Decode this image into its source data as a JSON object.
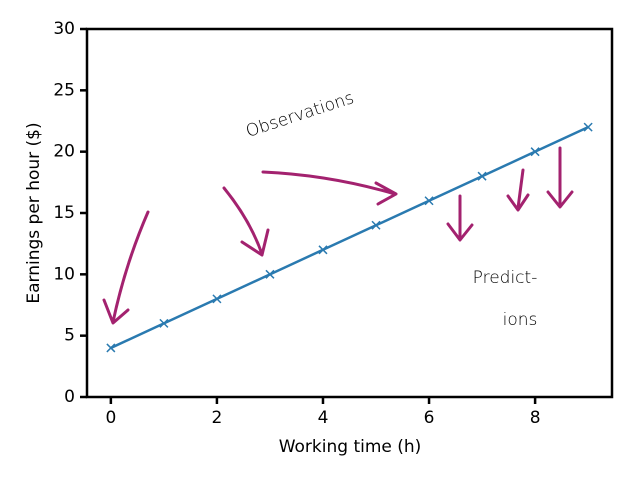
{
  "chart_data": {
    "type": "line",
    "x": [
      0,
      1,
      2,
      3,
      4,
      5,
      6,
      7,
      8,
      9
    ],
    "values": [
      4,
      6,
      8,
      10,
      12,
      14,
      16,
      18,
      20,
      22
    ],
    "color": "#2a7ab0",
    "xlabel": "Working time (h)",
    "ylabel": "Earnings per hour ($)",
    "xlim": [
      -0.45,
      9.45
    ],
    "xticks": [
      0,
      2,
      4,
      6,
      8
    ],
    "ylim": [
      0,
      30
    ],
    "yticks": [
      0,
      5,
      10,
      15,
      20,
      25,
      30
    ],
    "grid": false,
    "annotations": [
      "Observations",
      "Predict-",
      "ions"
    ],
    "annotation_color": "#a3226f"
  }
}
